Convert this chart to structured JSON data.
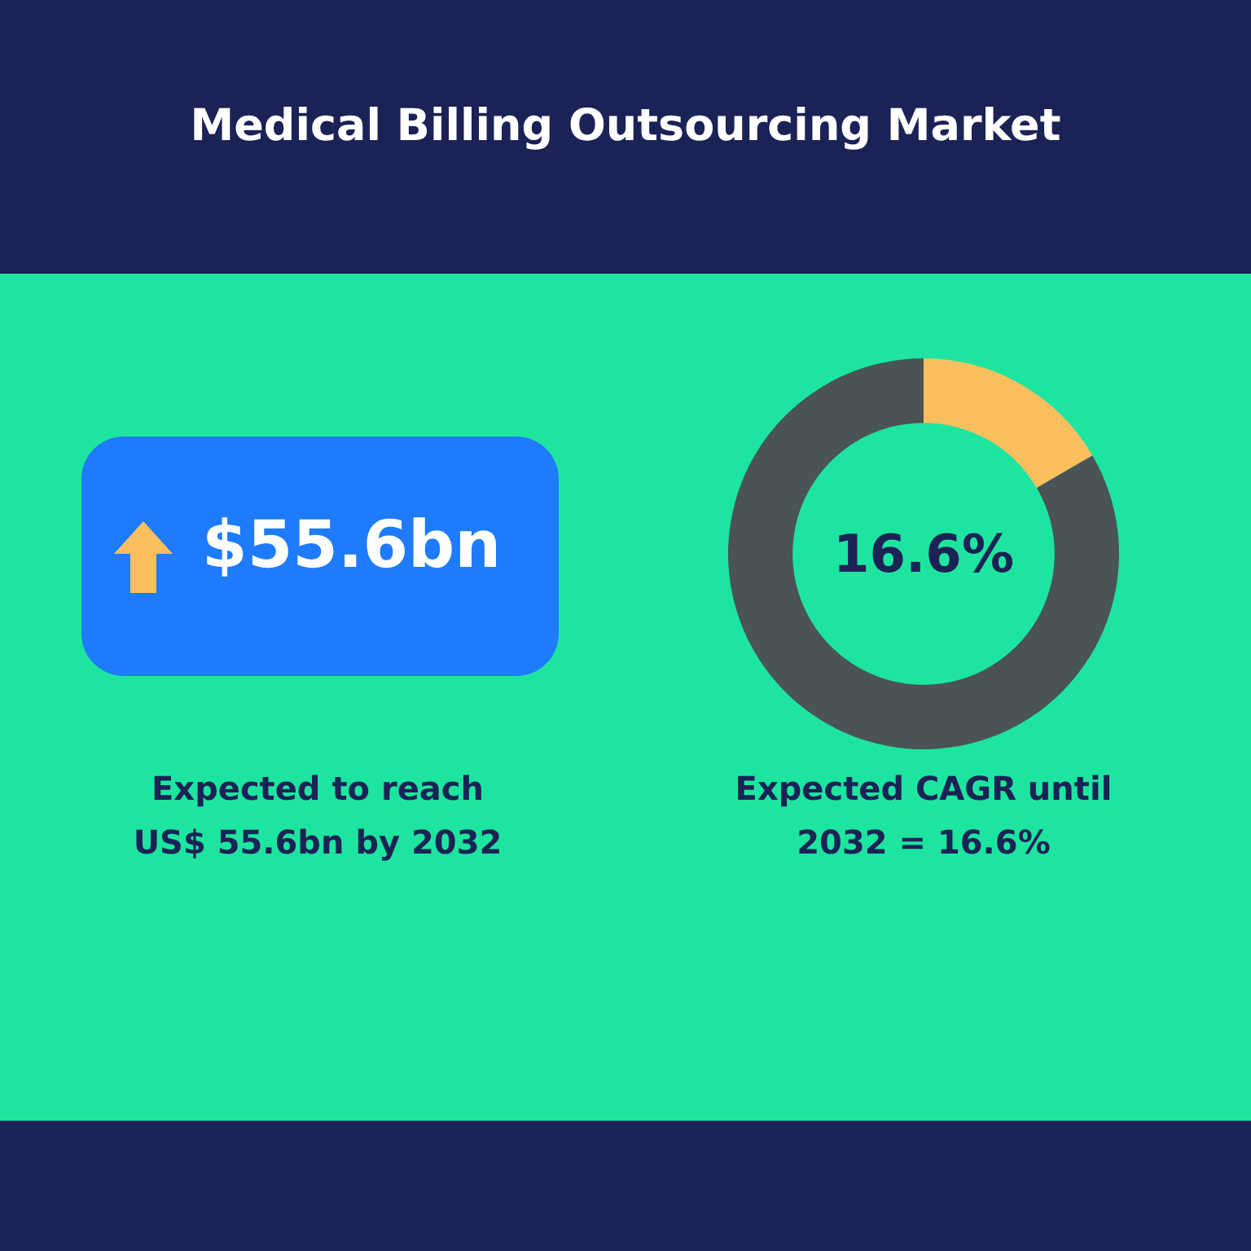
{
  "chart_data": [
    {
      "type": "other",
      "title": "Medical Billing Outsourcing Market",
      "annotations": [
        "$55.6bn",
        "Expected to reach US$ 55.6bn by 2032"
      ]
    },
    {
      "type": "donut",
      "categories": [
        null,
        null
      ],
      "values": [
        16.6,
        83.4
      ],
      "colors": [
        "#fbbf5e",
        "#4a5356"
      ],
      "annotations": [
        "16.6%",
        "Expected CAGR until 2032 = 16.6%"
      ]
    }
  ]
}
